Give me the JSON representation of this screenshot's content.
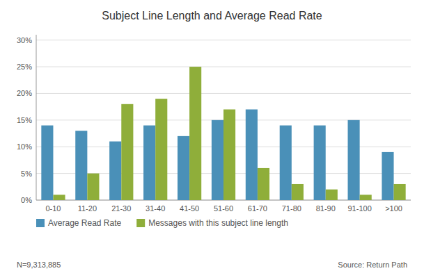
{
  "chart_data": {
    "type": "bar",
    "title": "Subject Line Length and Average Read Rate",
    "categories": [
      "0-10",
      "11-20",
      "21-30",
      "31-40",
      "41-50",
      "51-60",
      "61-70",
      "71-80",
      "81-90",
      "91-100",
      ">100"
    ],
    "series": [
      {
        "name": "Average Read Rate",
        "color": "#4a90b8",
        "values": [
          14,
          13,
          11,
          14,
          12,
          15,
          17,
          14,
          14,
          15,
          9
        ]
      },
      {
        "name": "Messages with this subject line length",
        "color": "#8fae3a",
        "values": [
          1,
          5,
          18,
          19,
          25,
          17,
          6,
          3,
          2,
          1,
          3
        ]
      }
    ],
    "ylim": [
      0,
      31
    ],
    "yticks": [
      {
        "value": 0,
        "label": "0%"
      },
      {
        "value": 5,
        "label": "5%"
      },
      {
        "value": 10,
        "label": "10%"
      },
      {
        "value": 15,
        "label": "15%"
      },
      {
        "value": 20,
        "label": "20%"
      },
      {
        "value": 25,
        "label": "25%"
      },
      {
        "value": 30,
        "label": "30%"
      }
    ],
    "grid": true,
    "legend": "bottom",
    "annotations": [
      "N=9,313,885",
      "Source: Return Path"
    ]
  }
}
